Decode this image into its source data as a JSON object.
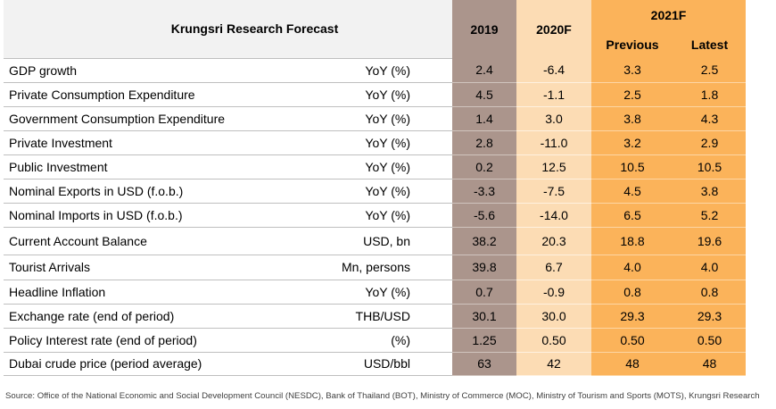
{
  "header": {
    "title": "Krungsri Research Forecast",
    "col_2019": "2019",
    "col_2020": "2020F",
    "col_2021": "2021F",
    "sub_previous": "Previous",
    "sub_latest": "Latest"
  },
  "rows": [
    {
      "indicator": "GDP growth",
      "unit": "YoY (%)",
      "y2019": "2.4",
      "y2020": "-6.4",
      "previous": "3.3",
      "latest": "2.5"
    },
    {
      "indicator": "Private Consumption Expenditure",
      "unit": "YoY (%)",
      "y2019": "4.5",
      "y2020": "-1.1",
      "previous": "2.5",
      "latest": "1.8"
    },
    {
      "indicator": "Government Consumption Expenditure",
      "unit": "YoY (%)",
      "y2019": "1.4",
      "y2020": "3.0",
      "previous": "3.8",
      "latest": "4.3"
    },
    {
      "indicator": "Private Investment",
      "unit": "YoY (%)",
      "y2019": "2.8",
      "y2020": "-11.0",
      "previous": "3.2",
      "latest": "2.9"
    },
    {
      "indicator": "Public Investment",
      "unit": "YoY (%)",
      "y2019": "0.2",
      "y2020": "12.5",
      "previous": "10.5",
      "latest": "10.5"
    },
    {
      "indicator": "Nominal Exports in USD (f.o.b.)",
      "unit": "YoY (%)",
      "y2019": "-3.3",
      "y2020": "-7.5",
      "previous": "4.5",
      "latest": "3.8"
    },
    {
      "indicator": "Nominal Imports in USD (f.o.b.)",
      "unit": "YoY (%)",
      "y2019": "-5.6",
      "y2020": "-14.0",
      "previous": "6.5",
      "latest": "5.2"
    },
    {
      "indicator": "Current Account Balance",
      "unit": "USD, bn",
      "y2019": "38.2",
      "y2020": "20.3",
      "previous": "18.8",
      "latest": "19.6"
    },
    {
      "indicator": "Tourist Arrivals",
      "unit": "Mn, persons",
      "y2019": "39.8",
      "y2020": "6.7",
      "previous": "4.0",
      "latest": "4.0"
    },
    {
      "indicator": "Headline Inflation",
      "unit": "YoY (%)",
      "y2019": "0.7",
      "y2020": "-0.9",
      "previous": "0.8",
      "latest": "0.8"
    },
    {
      "indicator": "Exchange rate (end of period)",
      "unit": "THB/USD",
      "y2019": "30.1",
      "y2020": "30.0",
      "previous": "29.3",
      "latest": "29.3"
    },
    {
      "indicator": "Policy Interest rate (end of period)",
      "unit": "(%)",
      "y2019": "1.25",
      "y2020": "0.50",
      "previous": "0.50",
      "latest": "0.50"
    },
    {
      "indicator": "Dubai crude price (period average)",
      "unit": "USD/bbl",
      "y2019": "63",
      "y2020": "42",
      "previous": "48",
      "latest": "48"
    }
  ],
  "source": "Source: Office of the National Economic and Social Development Council (NESDC), Bank of Thailand (BOT), Ministry of Commerce (MOC), Ministry of Tourism and Sports (MOTS), Krungsri Research",
  "colors": {
    "col_2019": "#ab958c",
    "col_2020": "#fcdcb4",
    "col_2021": "#fbb35a",
    "header_bg": "#f2f2f2"
  }
}
